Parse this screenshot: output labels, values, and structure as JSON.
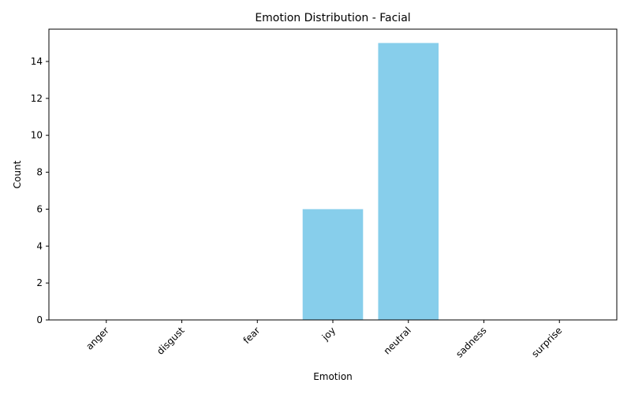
{
  "chart_data": {
    "type": "bar",
    "title": "Emotion Distribution - Facial",
    "xlabel": "Emotion",
    "ylabel": "Count",
    "categories": [
      "anger",
      "disgust",
      "fear",
      "joy",
      "neutral",
      "sadness",
      "surprise"
    ],
    "values": [
      0,
      0,
      0,
      6,
      15,
      0,
      0
    ],
    "ylim": [
      0,
      15.75
    ],
    "yticks": [
      0,
      2,
      4,
      6,
      8,
      10,
      12,
      14
    ],
    "bar_color": "#87CEEB",
    "grid": false,
    "legend": "none"
  }
}
